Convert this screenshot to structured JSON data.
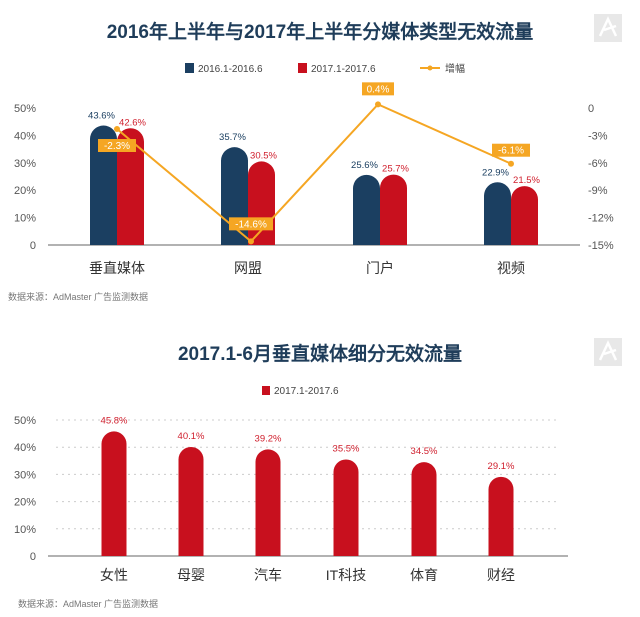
{
  "chart_data": [
    {
      "type": "bar",
      "title": "2016年上半年与2017年上半年分媒体类型无效流量",
      "categories": [
        "垂直媒体",
        "网盟",
        "门户",
        "视频"
      ],
      "series": [
        {
          "name": "2016.1-2016.6",
          "type": "bar",
          "axis": "left",
          "color": "#1b3f61",
          "values": [
            43.6,
            35.7,
            25.6,
            22.9
          ],
          "labels": [
            "43.6%",
            "35.7%",
            "25.6%",
            "22.9%"
          ]
        },
        {
          "name": "2017.1-2017.6",
          "type": "bar",
          "axis": "left",
          "color": "#c8101e",
          "values": [
            42.6,
            30.5,
            25.7,
            21.5
          ],
          "labels": [
            "42.6%",
            "30.5%",
            "25.7%",
            "21.5%"
          ]
        },
        {
          "name": "增幅",
          "type": "line",
          "axis": "right",
          "color": "#f5a623",
          "values": [
            -2.3,
            -14.6,
            0.4,
            -6.1
          ],
          "labels": [
            "-2.3%",
            "-14.6%",
            "0.4%",
            "-6.1%"
          ]
        }
      ],
      "ylim": [
        0,
        50
      ],
      "yticks": [
        "0",
        "10%",
        "20%",
        "30%",
        "40%",
        "50%"
      ],
      "y2lim": [
        -15,
        0
      ],
      "y2ticks": [
        "-15%",
        "-12%",
        "-9%",
        "-6%",
        "-3%",
        "0"
      ],
      "legend": "top-center",
      "source": "数据来源：AdMaster 广告监测数据"
    },
    {
      "type": "bar",
      "title": "2017.1-6月垂直媒体细分无效流量",
      "categories": [
        "女性",
        "母婴",
        "汽车",
        "IT科技",
        "体育",
        "财经"
      ],
      "series": [
        {
          "name": "2017.1-2017.6",
          "color": "#c8101e",
          "values": [
            45.8,
            40.1,
            39.2,
            35.5,
            34.5,
            29.1
          ],
          "labels": [
            "45.8%",
            "40.1%",
            "39.2%",
            "35.5%",
            "34.5%",
            "29.1%"
          ]
        }
      ],
      "ylim": [
        0,
        50
      ],
      "yticks": [
        "0",
        "10%",
        "20%",
        "30%",
        "40%",
        "50%"
      ],
      "grid": true,
      "legend": "top-center",
      "source": "数据来源：AdMaster 广告监测数据"
    }
  ]
}
